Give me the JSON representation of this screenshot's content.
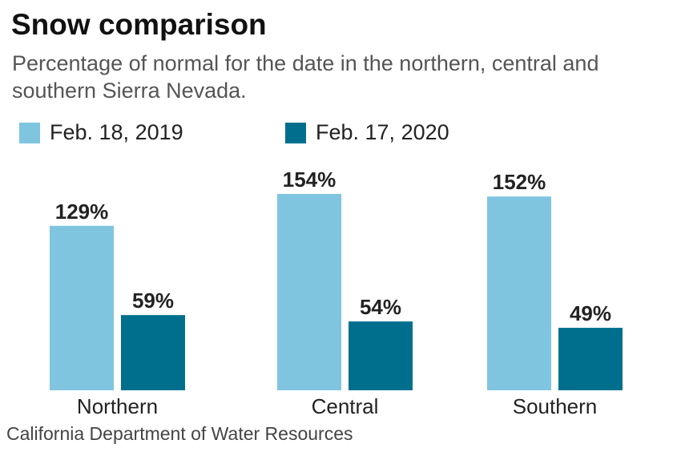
{
  "title": "Snow comparison",
  "subtitle": "Percentage of normal for the date in the northern, central and southern Sierra Nevada.",
  "source": "California Department of Water Resources",
  "chart_data": {
    "type": "bar",
    "title": "Snow comparison",
    "subtitle": "Percentage of normal for the date in the northern, central and southern Sierra Nevada.",
    "categories": [
      "Northern",
      "Central",
      "Southern"
    ],
    "series": [
      {
        "name": "Feb. 18, 2019",
        "values": [
          129,
          154,
          152
        ],
        "color": "#80C5E0"
      },
      {
        "name": "Feb. 17, 2020",
        "values": [
          59,
          54,
          49
        ],
        "color": "#006F8E"
      }
    ],
    "value_suffix": "%",
    "ylim": [
      0,
      160
    ],
    "grid": false,
    "legend": "top-left"
  }
}
